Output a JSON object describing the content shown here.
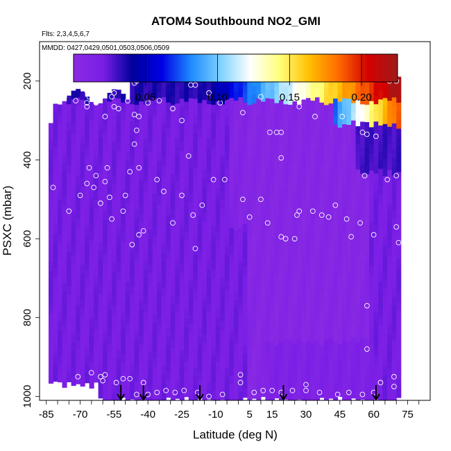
{
  "chart_data": {
    "type": "heatmap",
    "title": "ATOM4 Southbound NO2_GMI",
    "flights_label": "Flts: 2,3,4,5,6,7",
    "dates_label": "MMDD: 0427,0429,0501,0503,0506,0509",
    "xlabel": "Latitude (deg N)",
    "ylabel": "PSXC (mbar)",
    "xlim": [
      -88,
      85
    ],
    "ylim": [
      1010,
      100
    ],
    "x_ticks": [
      -85,
      -70,
      -55,
      -40,
      -25,
      -10,
      5,
      15,
      30,
      45,
      60,
      75
    ],
    "x_tick_labels": [
      "-85",
      "-70",
      "-55",
      "-40",
      "-25",
      "-10",
      "5",
      "15",
      "30",
      "45",
      "60",
      "75"
    ],
    "y_ticks": [
      200,
      400,
      600,
      800,
      1000
    ],
    "y_tick_labels": [
      "200",
      "400",
      "600",
      "800",
      "1000"
    ],
    "colorbar": {
      "range": [
        0,
        0.225
      ],
      "ticks": [
        0.05,
        0.1,
        0.15,
        0.2
      ],
      "tick_labels": [
        "0.05",
        "0.10",
        "0.15",
        "0.20"
      ],
      "colors": [
        "#8a2be2",
        "#7a1ee6",
        "#00009b",
        "#0000e6",
        "#1f8cff",
        "#7fd2ff",
        "#ffffff",
        "#ffff7a",
        "#ffbf00",
        "#ff6a00",
        "#d40000",
        "#9e1b1b"
      ]
    },
    "profile_arrows_lat": [
      -52,
      -42,
      -17,
      20,
      61
    ],
    "sample_points": [
      [
        -83,
        240
      ],
      [
        -77,
        240
      ],
      [
        -72,
        250
      ],
      [
        -67,
        225
      ],
      [
        -66,
        240
      ],
      [
        -67,
        255
      ],
      [
        -67,
        265
      ],
      [
        -63,
        255
      ],
      [
        -61,
        235
      ],
      [
        -56,
        240
      ],
      [
        -55,
        230
      ],
      [
        -59,
        290
      ],
      [
        -55,
        265
      ],
      [
        -53,
        270
      ],
      [
        -49,
        250
      ],
      [
        -46,
        205
      ],
      [
        -45,
        200
      ],
      [
        -46,
        285
      ],
      [
        -44,
        290
      ],
      [
        -40,
        255
      ],
      [
        -35,
        250
      ],
      [
        -29,
        270
      ],
      [
        -25,
        300
      ],
      [
        -21,
        210
      ],
      [
        -19,
        210
      ],
      [
        -13,
        230
      ],
      [
        -8,
        255
      ],
      [
        2,
        280
      ],
      [
        10,
        240
      ],
      [
        14,
        330
      ],
      [
        17,
        330
      ],
      [
        19,
        330
      ],
      [
        27,
        265
      ],
      [
        34,
        290
      ],
      [
        46,
        290
      ],
      [
        53,
        290
      ],
      [
        55,
        330
      ],
      [
        57,
        335
      ],
      [
        61,
        340
      ],
      [
        67,
        200
      ],
      [
        70,
        200
      ],
      [
        -46,
        360
      ],
      [
        -45,
        325
      ],
      [
        -22,
        390
      ],
      [
        19,
        395
      ],
      [
        -82,
        470
      ],
      [
        -75,
        530
      ],
      [
        -70,
        490
      ],
      [
        -67,
        460
      ],
      [
        -66,
        420
      ],
      [
        -63,
        440
      ],
      [
        -64,
        470
      ],
      [
        -61,
        510
      ],
      [
        -59,
        455
      ],
      [
        -58,
        420
      ],
      [
        -57,
        495
      ],
      [
        -56,
        550
      ],
      [
        -51,
        530
      ],
      [
        -50,
        490
      ],
      [
        -48,
        430
      ],
      [
        -44,
        420
      ],
      [
        -44,
        590
      ],
      [
        -42,
        580
      ],
      [
        -36,
        450
      ],
      [
        -33,
        480
      ],
      [
        -29,
        560
      ],
      [
        -25,
        490
      ],
      [
        -20,
        540
      ],
      [
        -16,
        515
      ],
      [
        -11,
        450
      ],
      [
        -6,
        450
      ],
      [
        2,
        500
      ],
      [
        5,
        545
      ],
      [
        10,
        500
      ],
      [
        13,
        560
      ],
      [
        19,
        595
      ],
      [
        21,
        600
      ],
      [
        26,
        540
      ],
      [
        27,
        530
      ],
      [
        33,
        530
      ],
      [
        37,
        540
      ],
      [
        40,
        545
      ],
      [
        43,
        515
      ],
      [
        48,
        550
      ],
      [
        50,
        595
      ],
      [
        54,
        560
      ],
      [
        56,
        440
      ],
      [
        60,
        590
      ],
      [
        70,
        570
      ],
      [
        71,
        610
      ],
      [
        66,
        450
      ],
      [
        70,
        440
      ],
      [
        -47,
        615
      ],
      [
        -19,
        625
      ],
      [
        25,
        600
      ],
      [
        57,
        770
      ],
      [
        57,
        880
      ],
      [
        -65,
        940
      ],
      [
        -61,
        950
      ],
      [
        -59,
        945
      ],
      [
        -54,
        965
      ],
      [
        -51,
        955
      ],
      [
        -48,
        955
      ],
      [
        -42,
        965
      ],
      [
        -36,
        990
      ],
      [
        -32,
        985
      ],
      [
        -28,
        990
      ],
      [
        -24,
        985
      ],
      [
        -18,
        990
      ],
      [
        -13,
        1000
      ],
      [
        -7,
        995
      ],
      [
        1,
        945
      ],
      [
        1,
        965
      ],
      [
        7,
        990
      ],
      [
        11,
        985
      ],
      [
        15,
        985
      ],
      [
        19,
        990
      ],
      [
        24,
        985
      ],
      [
        30,
        970
      ],
      [
        30,
        985
      ],
      [
        36,
        990
      ],
      [
        44,
        995
      ],
      [
        49,
        990
      ],
      [
        55,
        995
      ],
      [
        60,
        990
      ],
      [
        63,
        965
      ],
      [
        69,
        950
      ],
      [
        69,
        975
      ],
      [
        -71,
        950
      ],
      [
        -60,
        960
      ],
      [
        -45,
        995
      ],
      [
        -40,
        995
      ]
    ]
  }
}
